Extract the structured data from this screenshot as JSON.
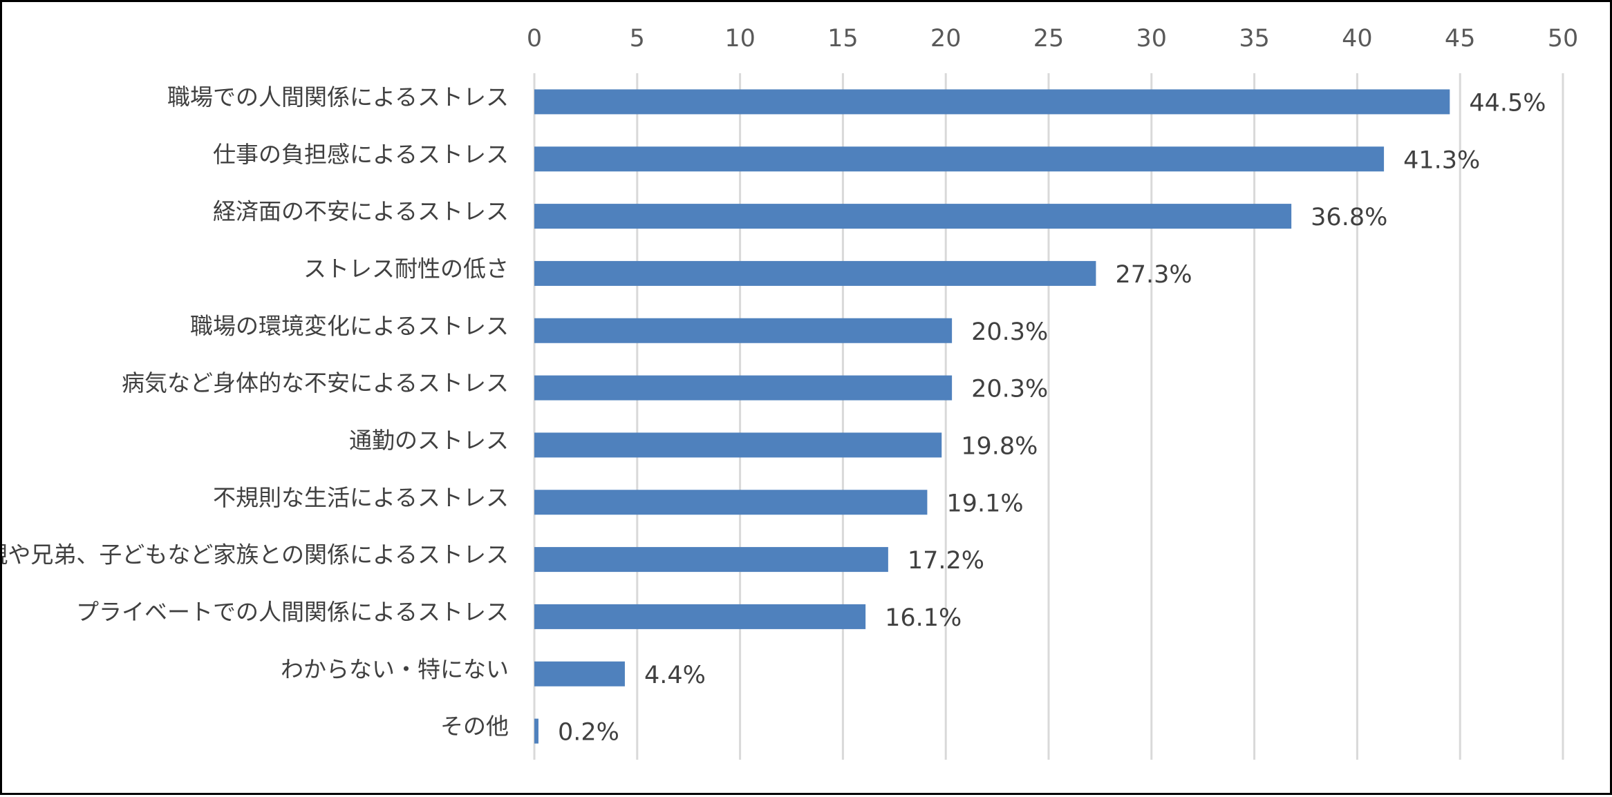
{
  "chart_data": {
    "type": "bar",
    "orientation": "horizontal",
    "categories": [
      "職場での人間関係によるストレス",
      "仕事の負担感によるストレス",
      "経済面の不安によるストレス",
      "ストレス耐性の低さ",
      "職場の環境変化によるストレス",
      "病気など身体的な不安によるストレス",
      "通勤のストレス",
      "不規則な生活によるストレス",
      "親や兄弟、子どもなど家族との関係によるストレス",
      "プライベートでの人間関係によるストレス",
      "わからない・特にない",
      "その他"
    ],
    "values": [
      44.5,
      41.3,
      36.8,
      27.3,
      20.3,
      20.3,
      19.8,
      19.1,
      17.2,
      16.1,
      4.4,
      0.2
    ],
    "data_labels": [
      "44.5%",
      "41.3%",
      "36.8%",
      "27.3%",
      "20.3%",
      "20.3%",
      "19.8%",
      "19.1%",
      "17.2%",
      "16.1%",
      "4.4%",
      "0.2%"
    ],
    "xlim": [
      0,
      50
    ],
    "x_ticks": [
      "0",
      "5",
      "10",
      "15",
      "20",
      "25",
      "30",
      "35",
      "40",
      "45",
      "50"
    ],
    "x_axis_position": "top",
    "grid": true,
    "legend": "none",
    "bar_color": "#4F81BD",
    "grid_color": "#D9D9D9",
    "title": "",
    "xlabel": "",
    "ylabel": ""
  }
}
